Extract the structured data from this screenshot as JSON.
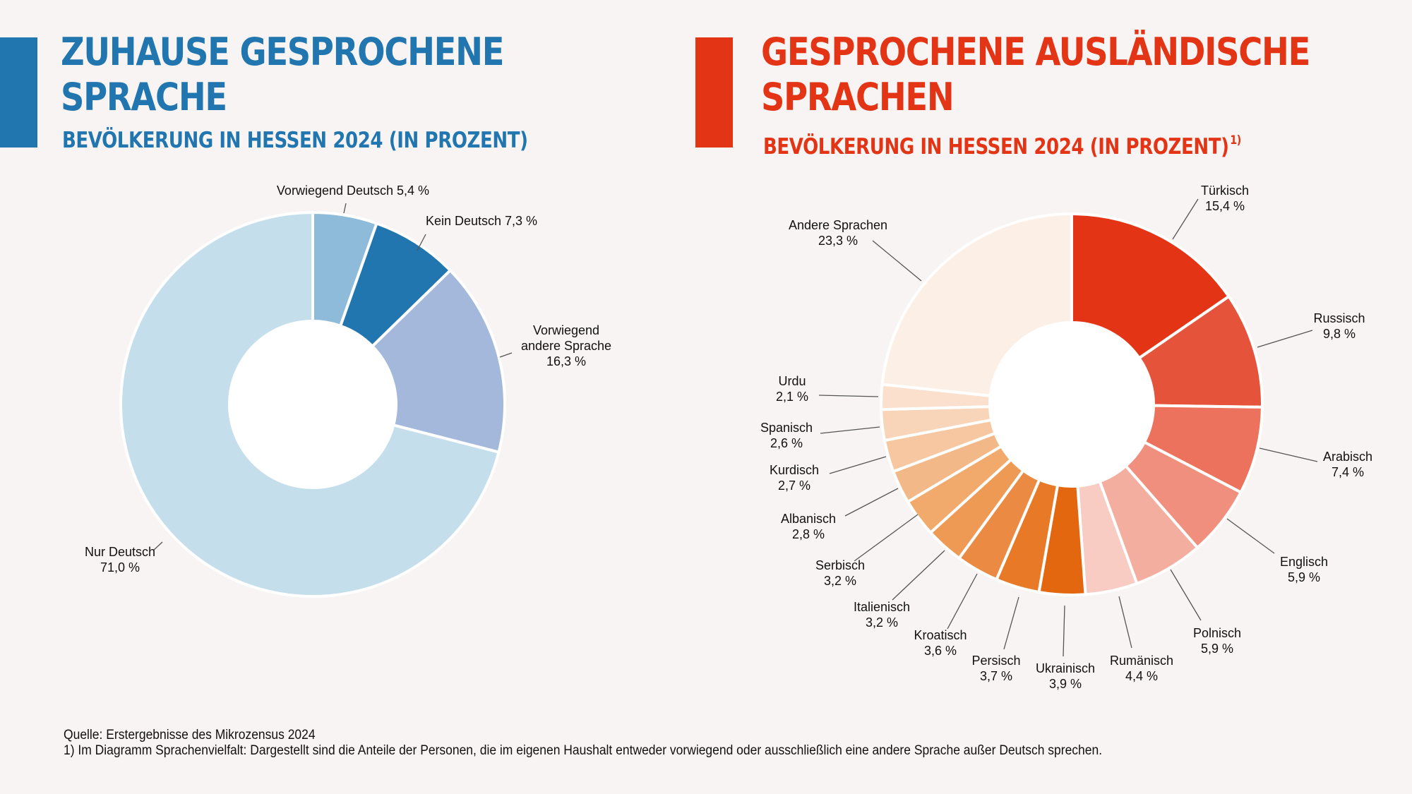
{
  "colors": {
    "blue_accent": "#2176B0",
    "red_accent": "#E33515",
    "background": "#F8F4F3",
    "leader_line": "#555555"
  },
  "left_panel": {
    "title_line1": "ZUHAUSE GESPROCHENE",
    "title_line2": "SPRACHE",
    "subtitle": "BEVÖLKERUNG IN HESSEN 2024 (IN PROZENT)"
  },
  "right_panel": {
    "title_line1": "GESPROCHENE AUSLÄNDISCHE",
    "title_line2": "SPRACHEN",
    "subtitle": "BEVÖLKERUNG IN HESSEN 2024 (IN PROZENT)",
    "footnote_marker": "1)"
  },
  "chart_data": [
    {
      "type": "pie",
      "variant": "donut",
      "title": "Zuhause gesprochene Sprache – Bevölkerung in Hessen 2024 (in Prozent)",
      "unit": "%",
      "start": "12 o'clock, clockwise",
      "slices": [
        {
          "label": "Vorwiegend Deutsch",
          "value": 5.4,
          "display": "Vorwiegend Deutsch 5,4 %",
          "color": "#8FBBDA"
        },
        {
          "label": "Kein Deutsch",
          "value": 7.3,
          "display": "Kein Deutsch 7,3 %",
          "color": "#2176B0"
        },
        {
          "label": "Vorwiegend andere Sprache",
          "value": 16.3,
          "display_lines": [
            "Vorwiegend",
            "andere Sprache",
            "16,3 %"
          ],
          "color": "#A3B8DA"
        },
        {
          "label": "Nur Deutsch",
          "value": 71.0,
          "display_lines": [
            "Nur Deutsch",
            "71,0 %"
          ],
          "color": "#C5DEEC"
        }
      ]
    },
    {
      "type": "pie",
      "variant": "donut",
      "title": "Gesprochene ausländische Sprachen – Bevölkerung in Hessen 2024 (in Prozent)",
      "unit": "%",
      "start": "12 o'clock, clockwise",
      "slices": [
        {
          "label": "Türkisch",
          "value": 15.4,
          "pct": "15,4 %",
          "color": "#E33515"
        },
        {
          "label": "Russisch",
          "value": 9.8,
          "pct": "9,8 %",
          "color": "#E5533A"
        },
        {
          "label": "Arabisch",
          "value": 7.4,
          "pct": "7,4 %",
          "color": "#EC725D"
        },
        {
          "label": "Englisch",
          "value": 5.9,
          "pct": "5,9 %",
          "color": "#F08F7E"
        },
        {
          "label": "Polnisch",
          "value": 5.9,
          "pct": "5,9 %",
          "color": "#F4AEA0"
        },
        {
          "label": "Rumänisch",
          "value": 4.4,
          "pct": "4,4 %",
          "color": "#F8CBC3"
        },
        {
          "label": "Ukrainisch",
          "value": 3.9,
          "pct": "3,9 %",
          "color": "#E3670F"
        },
        {
          "label": "Persisch",
          "value": 3.7,
          "pct": "3,7 %",
          "color": "#E87A27"
        },
        {
          "label": "Kroatisch",
          "value": 3.6,
          "pct": "3,6 %",
          "color": "#EB8B43"
        },
        {
          "label": "Italienisch",
          "value": 3.2,
          "pct": "3,2 %",
          "color": "#EE9A55"
        },
        {
          "label": "Serbisch",
          "value": 3.2,
          "pct": "3,2 %",
          "color": "#F1AA6C"
        },
        {
          "label": "Albanisch",
          "value": 2.8,
          "pct": "2,8 %",
          "color": "#F3B887"
        },
        {
          "label": "Kurdisch",
          "value": 2.7,
          "pct": "2,7 %",
          "color": "#F6C7A1"
        },
        {
          "label": "Spanisch",
          "value": 2.6,
          "pct": "2,6 %",
          "color": "#F8D4B8"
        },
        {
          "label": "Urdu",
          "value": 2.1,
          "pct": "2,1 %",
          "color": "#FAE0CD"
        },
        {
          "label": "Andere Sprachen",
          "value": 23.3,
          "pct": "23,3 %",
          "color": "#FCEFE6"
        }
      ]
    }
  ],
  "footer": {
    "source": "Quelle: Erstergebnisse des Mikrozensus 2024",
    "note": "1) Im Diagramm Sprachenvielfalt: Dargestellt sind die Anteile der Personen, die im eigenen Haushalt entweder vorwiegend oder ausschließlich eine andere Sprache außer Deutsch sprechen."
  }
}
